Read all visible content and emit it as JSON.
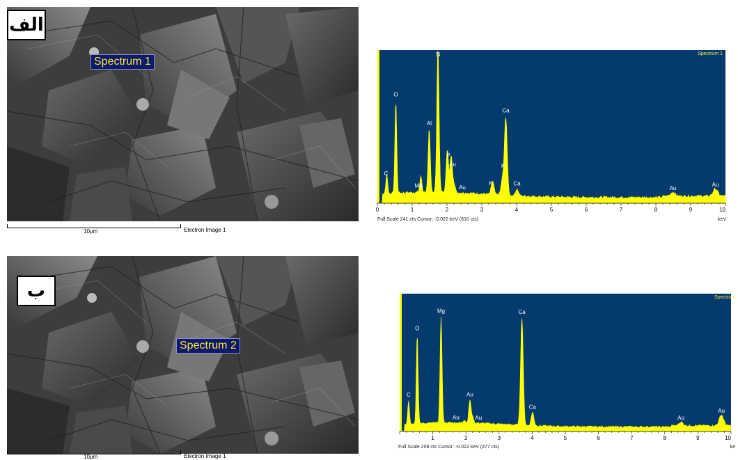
{
  "panels": [
    {
      "tag": "الف",
      "spectrum_label": "Spectrum 1",
      "scale_label": "10µm",
      "image_label": "Electron Image 1"
    },
    {
      "tag": "ب",
      "spectrum_label": "Spectrum 2",
      "scale_label": "10µm",
      "image_label": "Electron Image 1"
    }
  ],
  "colors": {
    "eds_background": "#053a6e",
    "eds_fill": "#ffff00",
    "label_background": "#0b1a6b",
    "label_text": "#ffe53b"
  },
  "chart_data": [
    {
      "type": "area",
      "title": "Spectrum 1",
      "xlabel": "keV",
      "ylabel": "",
      "xlim": [
        0,
        10
      ],
      "x_ticks": [
        "0",
        "1",
        "2",
        "3",
        "4",
        "5",
        "6",
        "7",
        "8",
        "9",
        "10"
      ],
      "footer": "Full Scale 241 cts  Cursor: -0.022 keV (610 cts)",
      "baseline": 16,
      "noise": 1.8,
      "peaks": [
        {
          "label": "C",
          "x": 0.27,
          "y": 30,
          "label_x": 0.25
        },
        {
          "label": "O",
          "x": 0.53,
          "y": 140,
          "label_x": 0.53
        },
        {
          "label": "Mg",
          "x": 1.25,
          "y": 24,
          "label_x": 1.18
        },
        {
          "label": "Al",
          "x": 1.49,
          "y": 95,
          "label_x": 1.49
        },
        {
          "label": "Si",
          "x": 1.74,
          "y": 222,
          "label_x": 1.74
        },
        {
          "label": "P",
          "x": 2.01,
          "y": 66,
          "label_x": 2.04
        },
        {
          "label": "Au",
          "x": 2.12,
          "y": 55,
          "label_x": 2.16
        },
        {
          "label": "Au",
          "x": 2.2,
          "y": 14,
          "label_x": 2.44
        },
        {
          "label": "K",
          "x": 3.31,
          "y": 20,
          "label_x": 3.26
        },
        {
          "label": "K",
          "x": 3.59,
          "y": 22,
          "label_x": 3.61
        },
        {
          "label": "Ca",
          "x": 3.69,
          "y": 118,
          "label_x": 3.69
        },
        {
          "label": "Ca",
          "x": 4.01,
          "y": 10,
          "label_x": 4.01
        },
        {
          "label": "Au",
          "x": 8.49,
          "y": 6,
          "label_x": 8.49
        },
        {
          "label": "Au",
          "x": 9.71,
          "y": 11,
          "label_x": 9.71
        }
      ]
    },
    {
      "type": "area",
      "title": "Spectrum",
      "xlabel": "ke",
      "ylabel": "",
      "xlim": [
        0,
        10
      ],
      "x_ticks": [
        "1",
        "2",
        "3",
        "4",
        "5",
        "6",
        "7",
        "8",
        "9",
        "10"
      ],
      "footer": "Full Scale 208 cts  Cursor: -0.022 keV (477 cts)",
      "baseline": 14,
      "noise": 1.6,
      "peaks": [
        {
          "label": "C",
          "x": 0.27,
          "y": 40,
          "label_x": 0.27
        },
        {
          "label": "O",
          "x": 0.53,
          "y": 150,
          "label_x": 0.53
        },
        {
          "label": "Mg",
          "x": 1.25,
          "y": 178,
          "label_x": 1.25
        },
        {
          "label": "Au",
          "x": 1.95,
          "y": 5,
          "label_x": 1.7
        },
        {
          "label": "Au",
          "x": 2.12,
          "y": 38,
          "label_x": 2.12
        },
        {
          "label": "Au",
          "x": 2.2,
          "y": 10,
          "label_x": 2.38
        },
        {
          "label": "Ca",
          "x": 3.69,
          "y": 180,
          "label_x": 3.69
        },
        {
          "label": "Ca",
          "x": 4.01,
          "y": 22,
          "label_x": 4.01
        },
        {
          "label": "Au",
          "x": 8.49,
          "y": 6,
          "label_x": 8.49
        },
        {
          "label": "Au",
          "x": 9.71,
          "y": 18,
          "label_x": 9.71
        }
      ]
    }
  ]
}
